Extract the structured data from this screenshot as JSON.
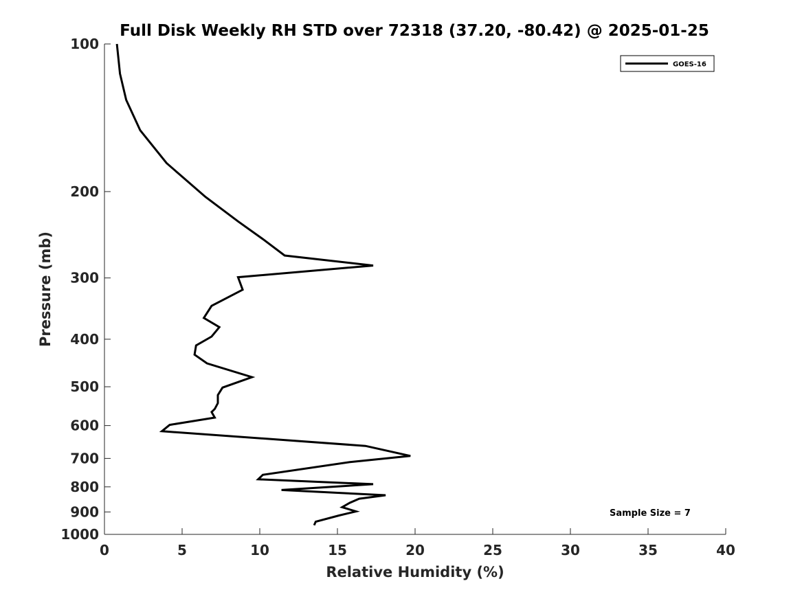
{
  "chart_data": {
    "type": "line",
    "title": "Full Disk Weekly RH STD over 72318 (37.20, -80.42) @ 2025-01-25",
    "xlabel": "Relative Humidity (%)",
    "ylabel": "Pressure (mb)",
    "xlim": [
      0,
      40
    ],
    "ylim": [
      100,
      1000
    ],
    "yscale": "log",
    "y_reversed": true,
    "grid": false,
    "legend_position": "top-right",
    "x_ticks": [
      0,
      5,
      10,
      15,
      20,
      25,
      30,
      35,
      40
    ],
    "x_tick_labels": [
      "0",
      "5",
      "10",
      "15",
      "20",
      "25",
      "30",
      "35",
      "40"
    ],
    "y_ticks": [
      100,
      200,
      300,
      400,
      500,
      600,
      700,
      800,
      900,
      1000
    ],
    "y_tick_labels": [
      "100",
      "200",
      "300",
      "400",
      "500",
      "600",
      "700",
      "800",
      "900",
      "1000"
    ],
    "series": [
      {
        "name": "GOES-16",
        "color": "#000000",
        "x": [
          0.8,
          1.0,
          1.4,
          2.3,
          4.0,
          6.5,
          8.6,
          10.2,
          11.6,
          17.3,
          8.6,
          8.9,
          6.9,
          6.4,
          7.4,
          6.9,
          5.9,
          5.8,
          6.6,
          9.5,
          7.6,
          7.3,
          7.3,
          7.1,
          6.9,
          7.1,
          4.2,
          3.7,
          16.8,
          19.7,
          15.8,
          10.2,
          9.9,
          17.3,
          11.4,
          18.1,
          16.4,
          15.8,
          15.3,
          16.2,
          15.1,
          13.6,
          13.5
        ],
        "y": [
          100,
          115,
          130,
          150,
          175,
          205,
          230,
          250,
          270,
          283,
          299,
          317,
          342,
          362,
          378,
          395,
          412,
          430,
          448,
          478,
          502,
          520,
          540,
          555,
          563,
          578,
          598,
          616,
          660,
          692,
          712,
          756,
          772,
          790,
          812,
          832,
          846,
          862,
          880,
          898,
          915,
          942,
          958
        ]
      }
    ],
    "legend": [
      {
        "label": "GOES-16",
        "color": "#000000"
      }
    ],
    "annotations": [
      {
        "text": "Sample Size = 7",
        "position": "bottom-right"
      }
    ]
  }
}
